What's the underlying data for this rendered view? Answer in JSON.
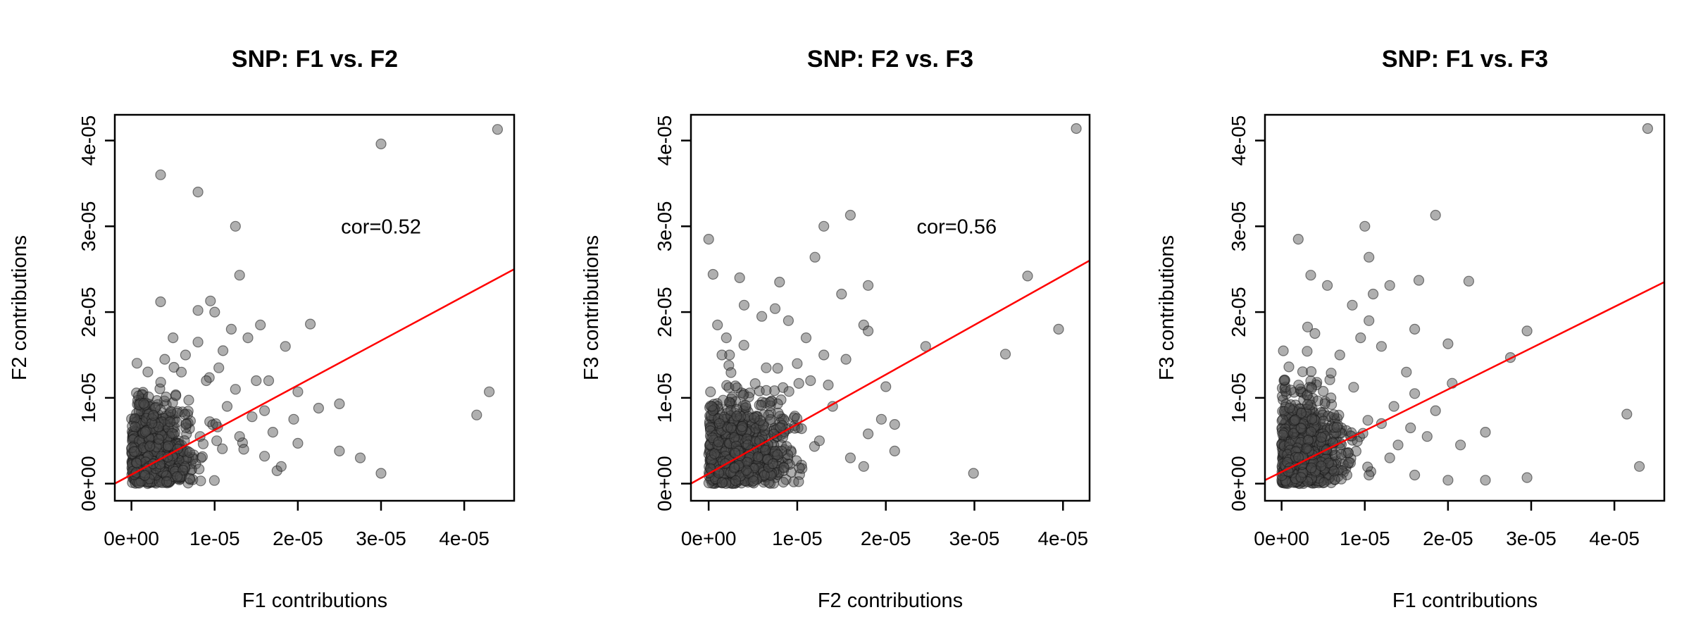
{
  "chart_data": [
    {
      "type": "scatter",
      "title": "SNP: F1 vs. F2",
      "xlabel": "F1 contributions",
      "ylabel": "F2 contributions",
      "xlim": [
        -2e-06,
        4.6e-05
      ],
      "ylim": [
        -2e-06,
        4.3e-05
      ],
      "xticks": [
        0,
        1e-05,
        2e-05,
        3e-05,
        4e-05
      ],
      "xtick_labels": [
        "0e+00",
        "1e-05",
        "2e-05",
        "3e-05",
        "4e-05"
      ],
      "yticks": [
        0,
        1e-05,
        2e-05,
        3e-05,
        4e-05
      ],
      "ytick_labels": [
        "0e+00",
        "1e-05",
        "2e-05",
        "3e-05",
        "4e-05"
      ],
      "annotation": "cor=0.52",
      "annotation_at": [
        3e-05,
        3e-05
      ],
      "point_color": "#4d4d4d",
      "fit_color": "#ff0000",
      "fit_line": [
        [
          -2e-06,
          0.0
        ],
        [
          4.6e-05,
          2.5e-05
        ]
      ],
      "dense_cloud": {
        "x_mean": 3e-06,
        "x_sd": 2.5e-06,
        "y_mean": 4e-06,
        "y_sd": 3e-06
      },
      "points": [
        [
          4.4e-05,
          4.13e-05
        ],
        [
          3e-05,
          3.96e-05
        ],
        [
          3.5e-06,
          3.6e-05
        ],
        [
          8e-06,
          3.4e-05
        ],
        [
          1.25e-05,
          3e-05
        ],
        [
          1.3e-05,
          2.43e-05
        ],
        [
          3.5e-06,
          2.12e-05
        ],
        [
          9.5e-06,
          2.13e-05
        ],
        [
          8e-06,
          2.02e-05
        ],
        [
          1e-05,
          2e-05
        ],
        [
          1.2e-05,
          1.8e-05
        ],
        [
          1.55e-05,
          1.85e-05
        ],
        [
          2.15e-05,
          1.86e-05
        ],
        [
          1.85e-05,
          1.6e-05
        ],
        [
          4.3e-05,
          1.07e-05
        ],
        [
          4.15e-05,
          8e-06
        ],
        [
          3e-05,
          1.2e-06
        ],
        [
          2.75e-05,
          3e-06
        ],
        [
          2.5e-05,
          9.3e-06
        ],
        [
          2.5e-05,
          3.8e-06
        ],
        [
          2.25e-05,
          8.8e-06
        ],
        [
          2e-05,
          1.07e-05
        ],
        [
          2e-05,
          4.7e-06
        ],
        [
          1.95e-05,
          7.5e-06
        ],
        [
          1.75e-05,
          1.5e-06
        ],
        [
          1.7e-05,
          6e-06
        ],
        [
          1.6e-05,
          8.5e-06
        ],
        [
          1.5e-05,
          1.2e-05
        ],
        [
          1.45e-05,
          7.8e-06
        ],
        [
          1.35e-05,
          4e-06
        ],
        [
          1.25e-05,
          1.1e-05
        ],
        [
          1.1e-05,
          1.55e-05
        ],
        [
          1.05e-05,
          1.35e-05
        ],
        [
          9e-06,
          1.2e-05
        ],
        [
          8e-06,
          1.65e-05
        ],
        [
          6.5e-06,
          1.5e-05
        ],
        [
          5e-06,
          1.7e-05
        ],
        [
          4e-06,
          1.45e-05
        ],
        [
          6e-06,
          1.3e-05
        ],
        [
          1.15e-05,
          9e-06
        ],
        [
          1.3e-05,
          5.5e-06
        ],
        [
          1.6e-05,
          3.2e-06
        ],
        [
          1.8e-05,
          2e-06
        ],
        [
          1.65e-05,
          1.2e-05
        ],
        [
          1.4e-05,
          1.7e-05
        ]
      ]
    },
    {
      "type": "scatter",
      "title": "SNP: F2 vs. F3",
      "xlabel": "F2 contributions",
      "ylabel": "F3 contributions",
      "xlim": [
        -2e-06,
        4.3e-05
      ],
      "ylim": [
        -2e-06,
        4.3e-05
      ],
      "xticks": [
        0,
        1e-05,
        2e-05,
        3e-05,
        4e-05
      ],
      "xtick_labels": [
        "0e+00",
        "1e-05",
        "2e-05",
        "3e-05",
        "4e-05"
      ],
      "yticks": [
        0,
        1e-05,
        2e-05,
        3e-05,
        4e-05
      ],
      "ytick_labels": [
        "0e+00",
        "1e-05",
        "2e-05",
        "3e-05",
        "4e-05"
      ],
      "annotation": "cor=0.56",
      "annotation_at": [
        2.8e-05,
        3e-05
      ],
      "point_color": "#4d4d4d",
      "fit_color": "#ff0000",
      "fit_line": [
        [
          -2e-06,
          0.0
        ],
        [
          4.3e-05,
          2.6e-05
        ]
      ],
      "dense_cloud": {
        "x_mean": 4e-06,
        "x_sd": 3e-06,
        "y_mean": 4e-06,
        "y_sd": 3e-06
      },
      "points": [
        [
          4.15e-05,
          4.14e-05
        ],
        [
          0.0,
          2.85e-05
        ],
        [
          1.3e-05,
          3e-05
        ],
        [
          1.6e-05,
          3.13e-05
        ],
        [
          1.2e-05,
          2.64e-05
        ],
        [
          3.6e-05,
          2.42e-05
        ],
        [
          5e-07,
          2.44e-05
        ],
        [
          3.5e-06,
          2.4e-05
        ],
        [
          8e-06,
          2.35e-05
        ],
        [
          1.8e-05,
          2.31e-05
        ],
        [
          1.5e-05,
          2.21e-05
        ],
        [
          4e-06,
          2.08e-05
        ],
        [
          7.5e-06,
          2.04e-05
        ],
        [
          9e-06,
          1.9e-05
        ],
        [
          6e-06,
          1.95e-05
        ],
        [
          3.95e-05,
          1.8e-05
        ],
        [
          3.35e-05,
          1.51e-05
        ],
        [
          1.75e-05,
          1.85e-05
        ],
        [
          1.8e-05,
          1.78e-05
        ],
        [
          2.45e-05,
          1.6e-05
        ],
        [
          2e-05,
          1.13e-05
        ],
        [
          2.1e-05,
          6.9e-06
        ],
        [
          2.1e-05,
          3.8e-06
        ],
        [
          1.8e-05,
          5.8e-06
        ],
        [
          1.75e-05,
          2e-06
        ],
        [
          1.55e-05,
          1.45e-05
        ],
        [
          1.4e-05,
          9e-06
        ],
        [
          1.3e-05,
          1.5e-05
        ],
        [
          1.25e-05,
          5e-06
        ],
        [
          1.15e-05,
          1.2e-05
        ],
        [
          2.99e-05,
          1.2e-06
        ],
        [
          1.95e-05,
          7.5e-06
        ],
        [
          1.1e-05,
          1.7e-05
        ],
        [
          1e-05,
          1.4e-05
        ],
        [
          1.6e-05,
          3e-06
        ],
        [
          2e-06,
          1.7e-05
        ],
        [
          1.5e-06,
          1.5e-05
        ],
        [
          1e-06,
          1.85e-05
        ],
        [
          6.5e-06,
          1.35e-05
        ],
        [
          1.35e-05,
          1.15e-05
        ]
      ]
    },
    {
      "type": "scatter",
      "title": "SNP: F1 vs. F3",
      "xlabel": "F1 contributions",
      "ylabel": "F3 contributions",
      "xlim": [
        -2e-06,
        4.6e-05
      ],
      "ylim": [
        -2e-06,
        4.3e-05
      ],
      "xticks": [
        0,
        1e-05,
        2e-05,
        3e-05,
        4e-05
      ],
      "xtick_labels": [
        "0e+00",
        "1e-05",
        "2e-05",
        "3e-05",
        "4e-05"
      ],
      "yticks": [
        0,
        1e-05,
        2e-05,
        3e-05,
        4e-05
      ],
      "ytick_labels": [
        "0e+00",
        "1e-05",
        "2e-05",
        "3e-05",
        "4e-05"
      ],
      "point_color": "#4d4d4d",
      "fit_color": "#ff0000",
      "fit_line": [
        [
          -2e-06,
          4e-07
        ],
        [
          4.6e-05,
          2.35e-05
        ]
      ],
      "dense_cloud": {
        "x_mean": 3e-06,
        "x_sd": 2.5e-06,
        "y_mean": 4e-06,
        "y_sd": 3e-06
      },
      "points": [
        [
          4.4e-05,
          4.14e-05
        ],
        [
          1.85e-05,
          3.13e-05
        ],
        [
          1e-05,
          3e-05
        ],
        [
          2e-06,
          2.85e-05
        ],
        [
          1.05e-05,
          2.64e-05
        ],
        [
          3.5e-06,
          2.43e-05
        ],
        [
          1.65e-05,
          2.37e-05
        ],
        [
          2.25e-05,
          2.36e-05
        ],
        [
          5.5e-06,
          2.31e-05
        ],
        [
          1.3e-05,
          2.31e-05
        ],
        [
          1.1e-05,
          2.21e-05
        ],
        [
          8.5e-06,
          2.08e-05
        ],
        [
          1.05e-05,
          1.9e-05
        ],
        [
          1.6e-05,
          1.8e-05
        ],
        [
          2e-05,
          1.63e-05
        ],
        [
          2.95e-05,
          1.78e-05
        ],
        [
          2.75e-05,
          1.47e-05
        ],
        [
          2.05e-05,
          1.17e-05
        ],
        [
          4.15e-05,
          8.1e-06
        ],
        [
          4.3e-05,
          2e-06
        ],
        [
          2.95e-05,
          7e-07
        ],
        [
          2.45e-05,
          6e-06
        ],
        [
          2.45e-05,
          4e-07
        ],
        [
          2.15e-05,
          4.5e-06
        ],
        [
          2e-05,
          4e-07
        ],
        [
          1.85e-05,
          8.5e-06
        ],
        [
          1.75e-05,
          5.5e-06
        ],
        [
          1.6e-05,
          1.05e-05
        ],
        [
          1.55e-05,
          6.5e-06
        ],
        [
          1.5e-05,
          1.3e-05
        ],
        [
          1.4e-05,
          4.5e-06
        ],
        [
          1.35e-05,
          9e-06
        ],
        [
          1.2e-05,
          1.6e-05
        ],
        [
          1.2e-05,
          7e-06
        ],
        [
          9.5e-06,
          1.7e-05
        ],
        [
          7e-06,
          1.5e-05
        ],
        [
          4e-06,
          1.75e-05
        ],
        [
          1.6e-05,
          1e-06
        ],
        [
          1.05e-05,
          1e-06
        ],
        [
          1.3e-05,
          3e-06
        ]
      ]
    }
  ]
}
